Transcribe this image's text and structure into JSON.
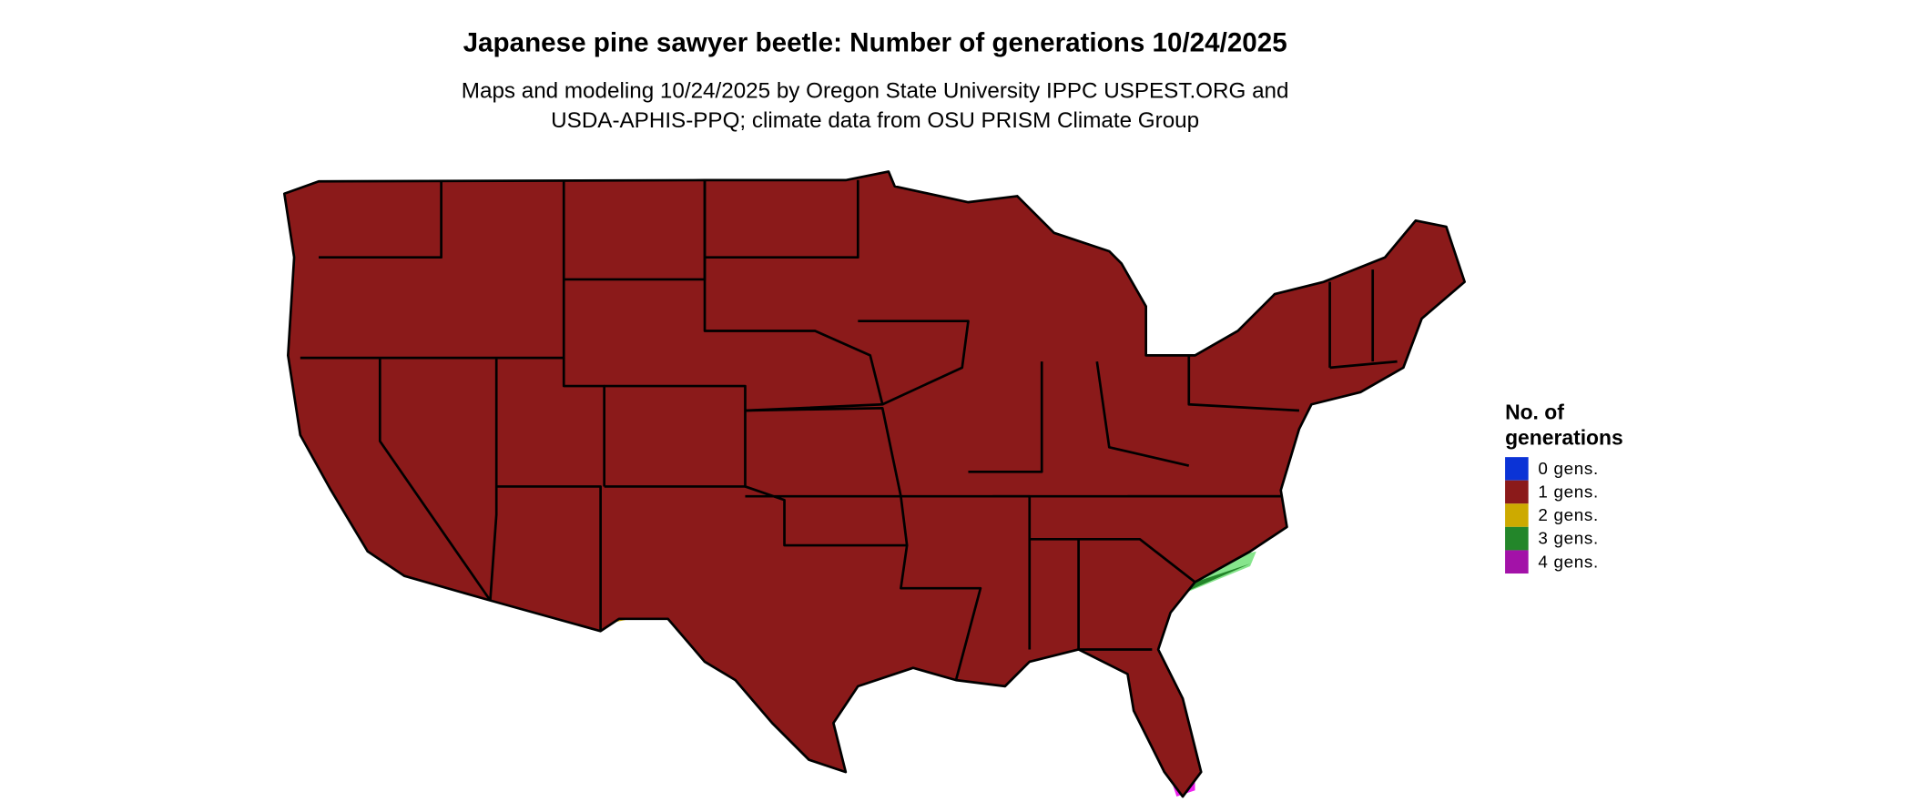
{
  "header": {
    "title": "Japanese pine sawyer beetle: Number of generations 10/24/2025",
    "subtitle": [
      "Maps and modeling 10/24/2025 by Oregon State University IPPC USPEST.ORG and",
      "USDA-APHIS-PPQ; climate data from OSU PRISM Climate Group"
    ]
  },
  "legend": {
    "title": [
      "No. of",
      "generations"
    ],
    "items": [
      {
        "label": "0 gens.",
        "color": "#0b33d6"
      },
      {
        "label": "1 gens.",
        "color": "#8b1a1a"
      },
      {
        "label": "2 gens.",
        "color": "#cdaa00"
      },
      {
        "label": "3 gens.",
        "color": "#23862a"
      },
      {
        "label": "4 gens.",
        "color": "#a312a8"
      }
    ]
  }
}
